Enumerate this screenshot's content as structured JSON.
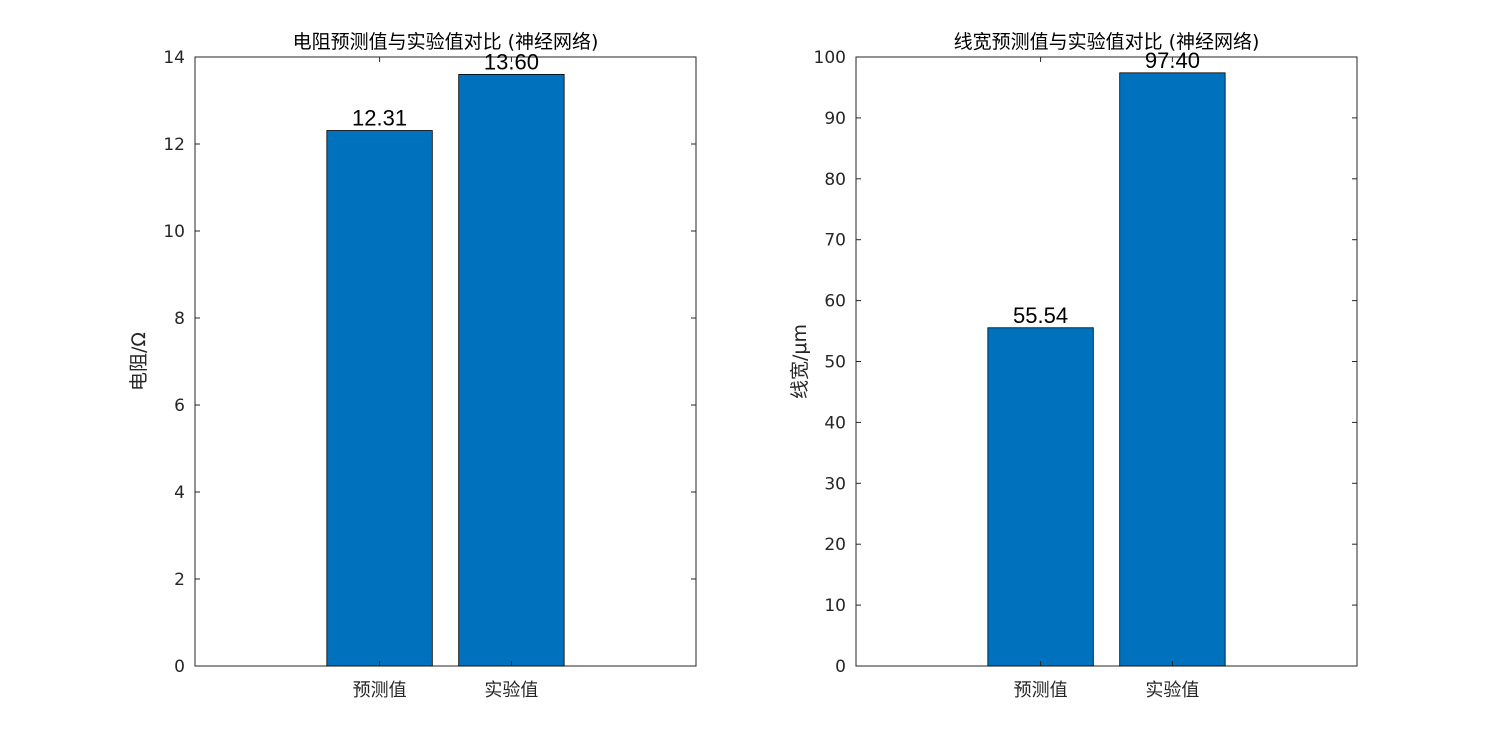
{
  "chart_data": [
    {
      "type": "bar",
      "title": "电阻预测值与实验值对比 (神经网络)",
      "xlabel": "",
      "ylabel": "电阻/Ω",
      "categories": [
        "预测值",
        "实验值"
      ],
      "values": [
        12.31,
        13.6
      ],
      "data_labels": [
        "12.31",
        "13.60"
      ],
      "ylim": [
        0,
        14
      ],
      "yticks": [
        0,
        2,
        4,
        6,
        8,
        10,
        12,
        14
      ],
      "grid": false,
      "bar_color": "#0072BD"
    },
    {
      "type": "bar",
      "title": "线宽预测值与实验值对比 (神经网络)",
      "xlabel": "",
      "ylabel": "线宽/μm",
      "categories": [
        "预测值",
        "实验值"
      ],
      "values": [
        55.54,
        97.4
      ],
      "data_labels": [
        "55.54",
        "97.40"
      ],
      "ylim": [
        0,
        100
      ],
      "yticks": [
        0,
        10,
        20,
        30,
        40,
        50,
        60,
        70,
        80,
        90,
        100
      ],
      "grid": false,
      "bar_color": "#0072BD"
    }
  ]
}
